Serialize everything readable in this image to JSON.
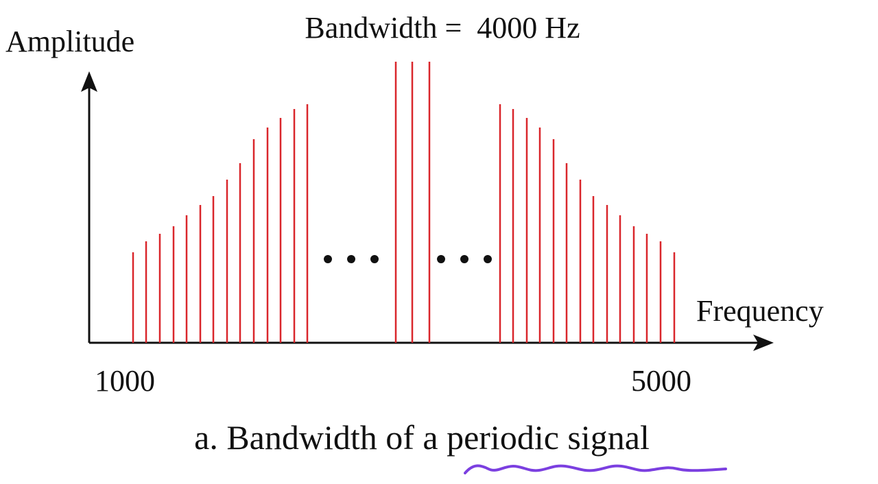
{
  "labels": {
    "y_axis": "Amplitude",
    "title": "Bandwidth =  4000 Hz",
    "x_axis": "Frequency",
    "x_start": "1000",
    "x_end": "5000",
    "caption": "a. Bandwidth of a periodic signal"
  }
}
